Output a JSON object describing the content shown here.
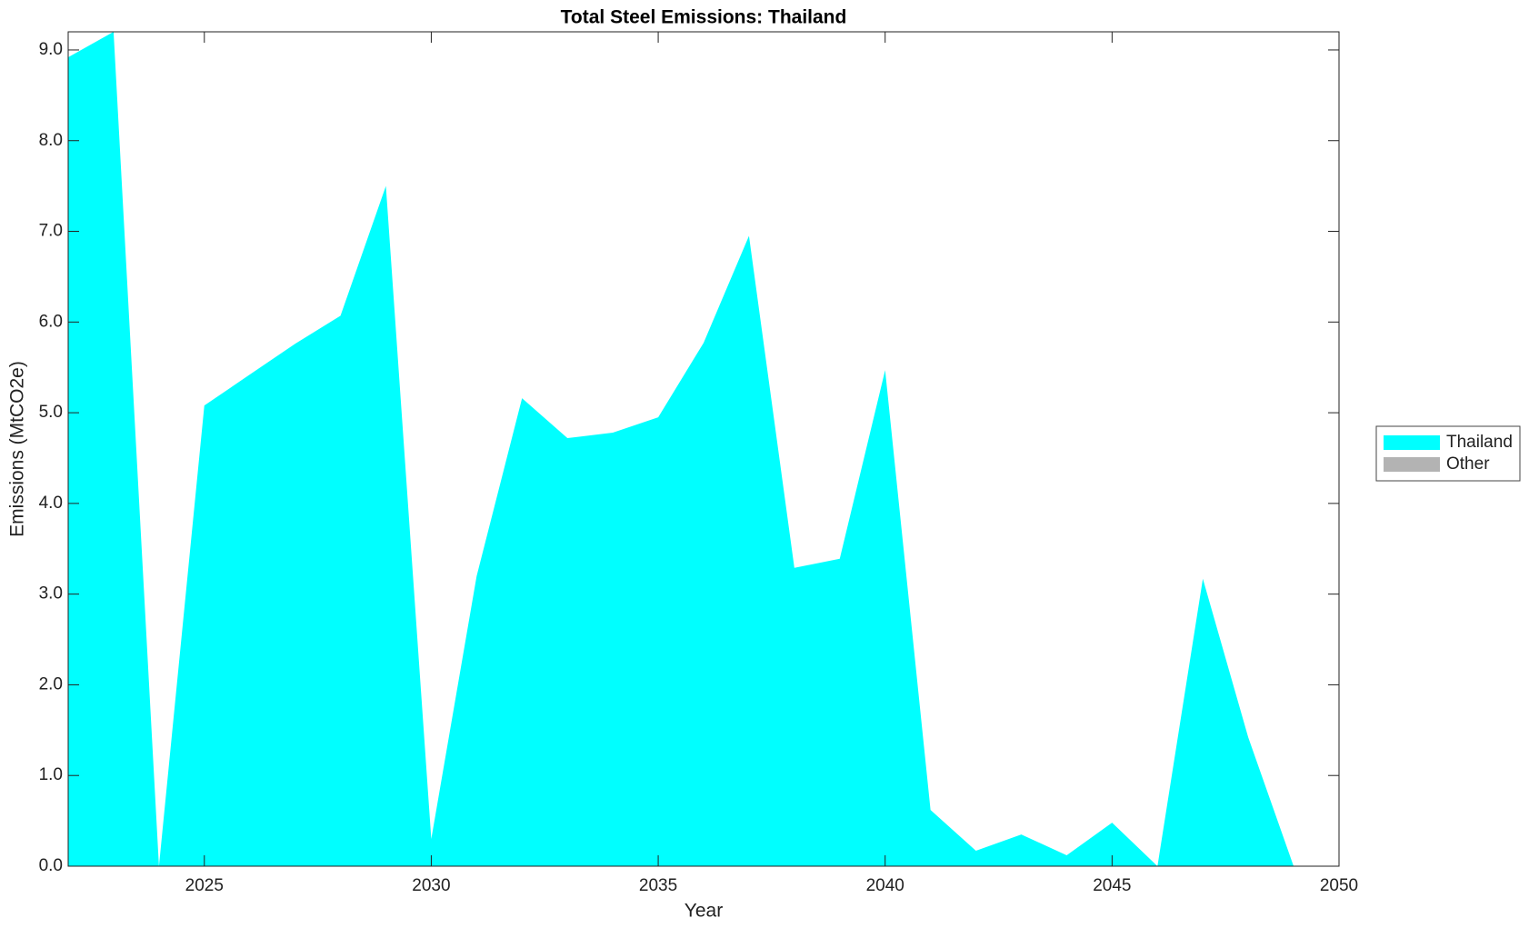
{
  "chart_data": {
    "type": "area",
    "title": "Total Steel Emissions: Thailand",
    "x_label": "Year",
    "y_label": "Emissions (MtCO2e)",
    "x": [
      2022,
      2023,
      2024,
      2025,
      2026,
      2027,
      2028,
      2029,
      2030,
      2031,
      2032,
      2033,
      2034,
      2035,
      2036,
      2037,
      2038,
      2039,
      2040,
      2041,
      2042,
      2043,
      2044,
      2045,
      2046,
      2047,
      2048,
      2049
    ],
    "series": [
      {
        "name": "Thailand",
        "color": "#00ffff",
        "values": [
          8.92,
          9.2,
          0.0,
          5.08,
          5.42,
          5.76,
          6.07,
          7.5,
          0.3,
          3.2,
          5.16,
          4.72,
          4.78,
          4.95,
          5.77,
          6.95,
          3.29,
          3.39,
          5.47,
          0.62,
          0.17,
          0.35,
          0.12,
          0.48,
          0.0,
          3.17,
          1.42,
          0.0
        ]
      },
      {
        "name": "Other",
        "color": "#b3b3b3",
        "values": [
          0,
          0,
          0,
          0,
          0,
          0,
          0,
          0,
          0,
          0,
          0,
          0,
          0,
          0,
          0,
          0,
          0,
          0,
          0,
          0,
          0,
          0,
          0,
          0,
          0,
          0,
          0,
          0
        ]
      }
    ],
    "stacked": true,
    "xlim": [
      2022,
      2050
    ],
    "xticks": [
      2025,
      2030,
      2035,
      2040,
      2045,
      2050
    ],
    "ylim": [
      0,
      9.2
    ],
    "yticks": [
      {
        "value": 0,
        "label": "0.0"
      },
      {
        "value": 1,
        "label": "1.0"
      },
      {
        "value": 2,
        "label": "2.0"
      },
      {
        "value": 3,
        "label": "3.0"
      },
      {
        "value": 4,
        "label": "4.0"
      },
      {
        "value": 5,
        "label": "5.0"
      },
      {
        "value": 6,
        "label": "6.0"
      },
      {
        "value": 7,
        "label": "7.0"
      },
      {
        "value": 8,
        "label": "8.0"
      },
      {
        "value": 9,
        "label": "9.0"
      }
    ],
    "grid": false,
    "legend": "right"
  }
}
